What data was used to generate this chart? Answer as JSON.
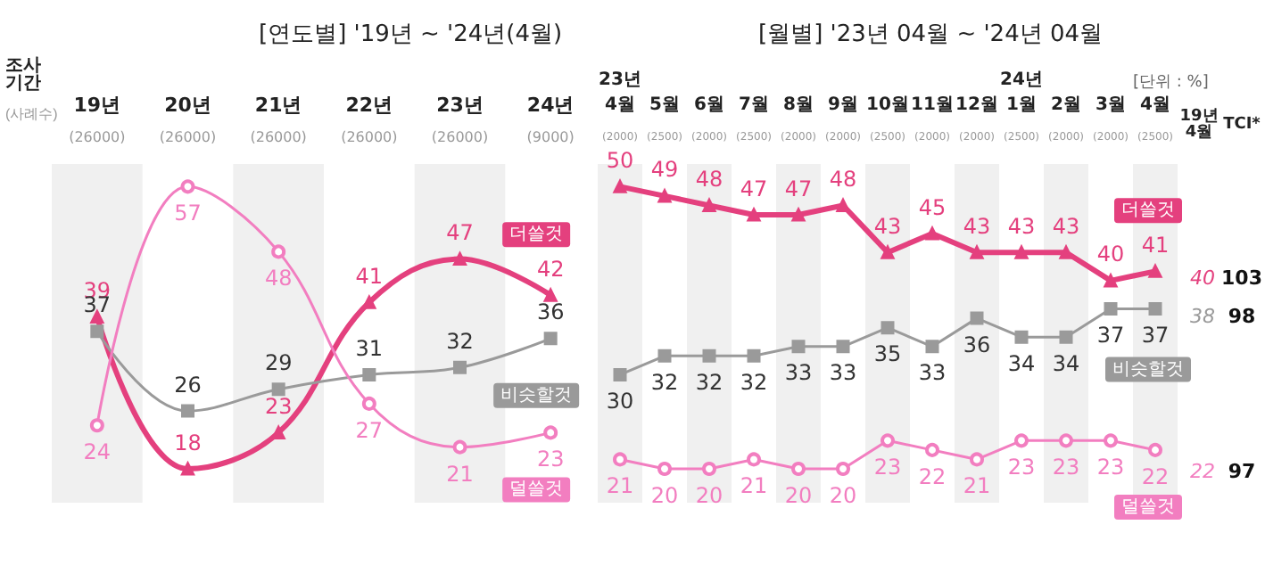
{
  "chart_data": [
    {
      "type": "line",
      "title": "[연도별] '19년 ~ '24년(4월)",
      "categories": [
        "19년\n(26000)",
        "20년\n(26000)",
        "21년\n(26000)",
        "22년\n(26000)",
        "23년\n(26000)",
        "24년\n(9000)"
      ],
      "series": [
        {
          "name": "더쓸것",
          "color": "#e4407e",
          "marker": "triangle",
          "values": [
            39,
            18,
            23,
            41,
            47,
            42
          ]
        },
        {
          "name": "비슷할것",
          "color": "#9a9a9a",
          "marker": "square",
          "values": [
            37,
            26,
            29,
            31,
            32,
            36
          ]
        },
        {
          "name": "덜쓸것",
          "color": "#f27ec0",
          "marker": "circle",
          "values": [
            24,
            57,
            48,
            27,
            21,
            23
          ]
        }
      ],
      "data_labels": true,
      "grid": false,
      "legend": false,
      "tick_labels": "x",
      "annotations": [
        "조사\n기간",
        "(사례수)"
      ]
    },
    {
      "type": "line",
      "title": "[월별] '23년 04월 ~ '24년 04월",
      "categories": [
        "23년\n4월\n(2000)",
        "5월\n(2500)",
        "6월\n(2000)",
        "7월\n(2500)",
        "8월\n(2000)",
        "9월\n(2000)",
        "10월\n(2500)",
        "11월\n(2000)",
        "12월\n(2000)",
        "24년\n1월\n(2500)",
        "2월\n(2000)",
        "3월\n(2000)",
        "4월\n(2500)"
      ],
      "series": [
        {
          "name": "더쓸것",
          "color": "#e4407e",
          "marker": "triangle",
          "values": [
            50,
            49,
            48,
            47,
            47,
            48,
            43,
            45,
            43,
            43,
            43,
            40,
            41
          ]
        },
        {
          "name": "비슷할것",
          "color": "#9a9a9a",
          "marker": "square",
          "values": [
            30,
            32,
            32,
            32,
            33,
            33,
            35,
            33,
            36,
            34,
            34,
            37,
            37
          ]
        },
        {
          "name": "덜쓸것",
          "color": "#f27ec0",
          "marker": "circle",
          "values": [
            21,
            20,
            20,
            21,
            20,
            20,
            23,
            22,
            21,
            23,
            23,
            23,
            22
          ]
        }
      ],
      "data_labels": true,
      "grid": false,
      "legend": false,
      "tick_labels": "x",
      "annotations": [
        "[단위 : %]",
        "19년\n4월",
        "40",
        "38",
        "22",
        "TCI*",
        "103",
        "98",
        "97"
      ]
    }
  ]
}
